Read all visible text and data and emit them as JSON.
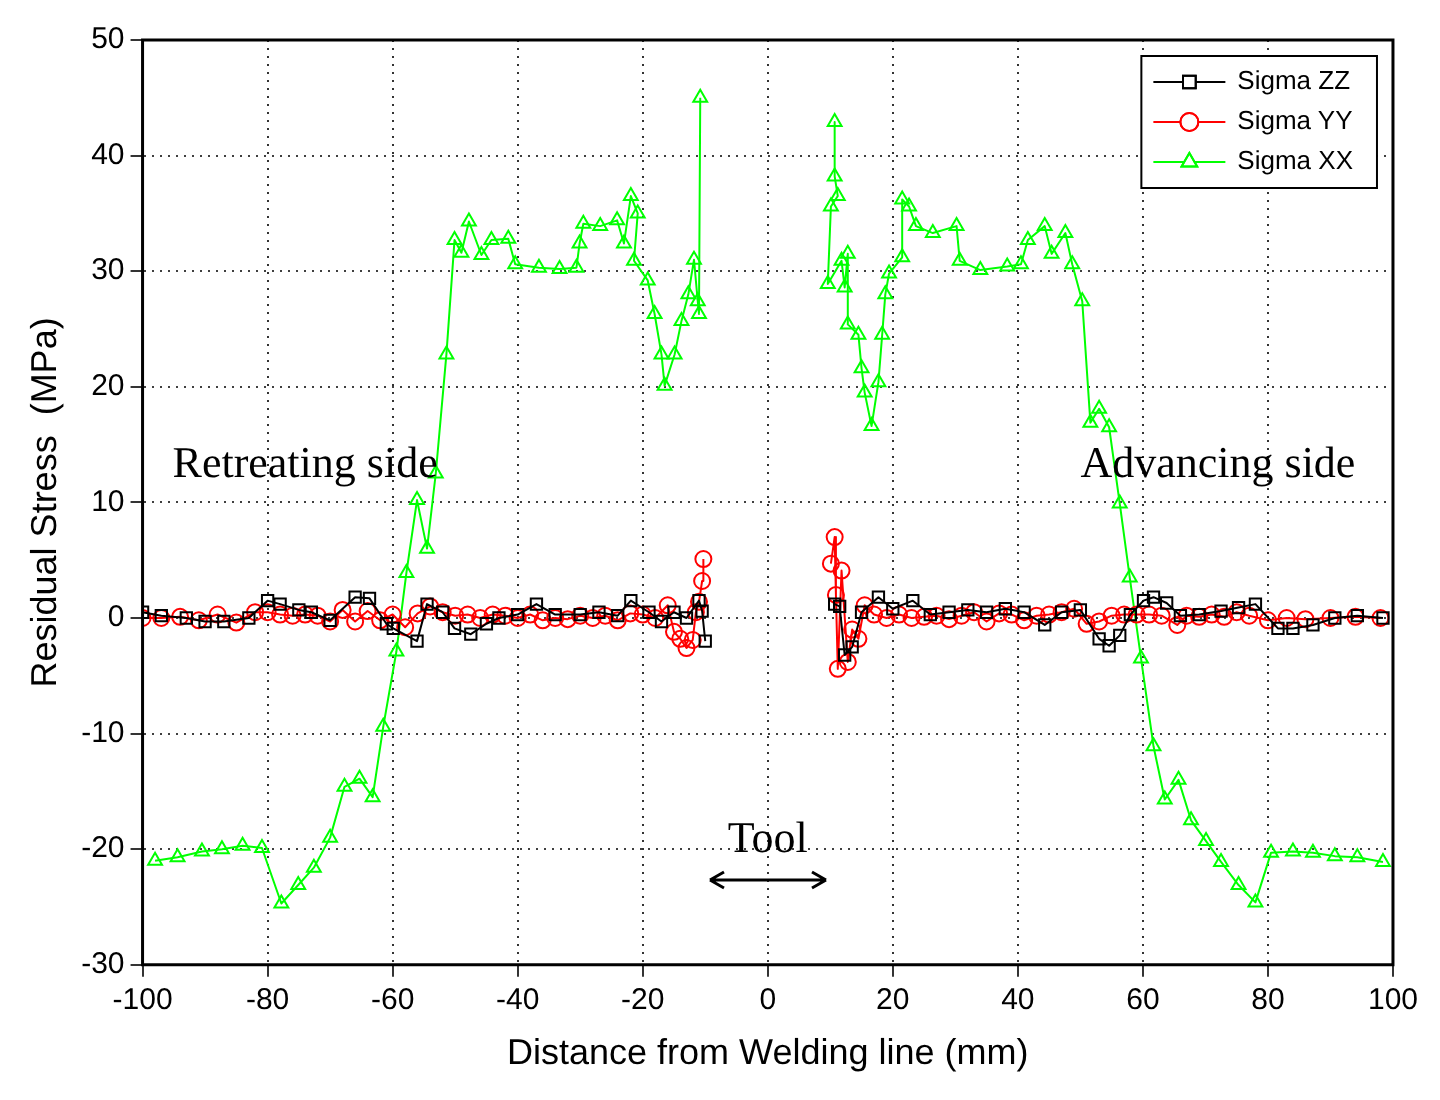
{
  "chart_data": {
    "type": "line",
    "xlabel": "Distance from Welding line (mm)",
    "ylabel": "Residual Stress  (MPa)",
    "xlim": [
      -100,
      100
    ],
    "xticks": [
      -100,
      -80,
      -60,
      -40,
      -20,
      0,
      20,
      40,
      60,
      80,
      100
    ],
    "ylim": [
      -30,
      50
    ],
    "yticks": [
      -30,
      -20,
      -10,
      0,
      10,
      20,
      30,
      40,
      50
    ],
    "grid": true,
    "legend": "top right",
    "line_style": "solid",
    "annotations": [
      "Retreating side",
      "Advancing side",
      "Tool"
    ],
    "series": [
      {
        "name": "Sigma ZZ",
        "color": "#000000",
        "marker": "square",
        "x": [
          -100,
          -97,
          -93,
          -90,
          -87,
          -83,
          -80,
          -78,
          -75,
          -73,
          -70,
          -66,
          -63.7,
          -61,
          -59.9,
          -56.1,
          -54.5,
          -52,
          -50.1,
          -47.5,
          -45,
          -43,
          -40,
          -37,
          -34,
          -30,
          -27,
          -24,
          -21.9,
          -19,
          -17,
          -15,
          -13,
          -11,
          -10.5,
          -10,
          0,
          10.7,
          11.5,
          12.3,
          13.5,
          15,
          17.7,
          20,
          23.2,
          26,
          29,
          32,
          35,
          38,
          41,
          44.3,
          47,
          50,
          53,
          54.6,
          56.3,
          58,
          60.1,
          61.7,
          63.8,
          66,
          69,
          72.5,
          75.3,
          78,
          81.6,
          84,
          87.2,
          90.7,
          94.3,
          98.4
        ],
        "values": [
          0.5,
          0.2,
          0,
          -0.3,
          -0.3,
          0,
          1.5,
          1.2,
          0.7,
          0.5,
          -0.2,
          1.8,
          1.7,
          -0.5,
          -0.9,
          -2.0,
          1.2,
          0.5,
          -0.9,
          -1.4,
          -0.5,
          0,
          0.3,
          1.2,
          0.3,
          0.3,
          0.5,
          0.2,
          1.5,
          0.5,
          -0.3,
          0.5,
          0,
          1.5,
          0.6,
          -2.0,
          null,
          1.2,
          1.0,
          -3.2,
          -2.5,
          0.5,
          1.8,
          0.8,
          1.5,
          0.3,
          0.5,
          0.7,
          0.5,
          0.8,
          0.5,
          -0.6,
          0.5,
          0.7,
          -1.8,
          -2.4,
          -1.5,
          0.3,
          1.5,
          1.8,
          1.3,
          0.2,
          0.3,
          0.6,
          0.9,
          1.2,
          -0.9,
          -0.9,
          -0.6,
          0,
          0.2,
          0
        ]
      },
      {
        "name": "Sigma YY",
        "color": "#ff0000",
        "marker": "circle",
        "x": [
          -100,
          -97,
          -94,
          -91,
          -88,
          -85,
          -82,
          -80,
          -78,
          -76,
          -74,
          -72,
          -70,
          -68,
          -66,
          -64,
          -62,
          -60,
          -58,
          -56,
          -54,
          -52,
          -50,
          -48,
          -46,
          -44,
          -42,
          -40,
          -38,
          -36,
          -34,
          -32,
          -30,
          -28,
          -26,
          -24,
          -22,
          -20,
          -18,
          -16,
          -15,
          -14,
          -13,
          -12,
          -11.5,
          -11,
          -10.5,
          -10.3,
          0,
          10.1,
          10.7,
          10.9,
          11.2,
          11.8,
          12.8,
          13.5,
          14.5,
          15.5,
          17,
          19,
          21,
          23,
          25,
          27,
          29,
          31,
          33,
          35,
          37,
          39,
          41,
          43,
          45,
          47,
          49,
          51,
          53,
          55,
          57,
          59,
          61,
          63,
          65.5,
          67,
          69,
          71,
          73,
          75,
          77,
          80,
          83,
          86,
          90,
          94,
          98
        ],
        "values": [
          0,
          0,
          0.1,
          -0.2,
          0.3,
          -0.4,
          0.5,
          0.5,
          0.3,
          0.2,
          0.3,
          0.2,
          -0.3,
          0.7,
          -0.3,
          0.6,
          -0.2,
          0.3,
          -0.8,
          0.4,
          1.0,
          0.5,
          0.2,
          0.3,
          0,
          0.3,
          0.2,
          0,
          0.3,
          -0.2,
          0,
          -0.1,
          0.2,
          0,
          0.2,
          -0.2,
          0.4,
          0.3,
          0,
          1.1,
          -1.2,
          -1.8,
          -2.6,
          -1.9,
          0.5,
          1.4,
          3.2,
          5.1,
          null,
          4.7,
          7.0,
          2,
          -4.4,
          4.1,
          -3.8,
          -1,
          -1.8,
          1.1,
          0.3,
          0,
          0.3,
          0,
          0.1,
          0.2,
          -0.1,
          0.2,
          0.5,
          -0.3,
          0.4,
          0.3,
          -0.2,
          0.2,
          0.3,
          0.5,
          0.8,
          -0.5,
          -0.3,
          0.2,
          0.3,
          0.3,
          0.3,
          0.2,
          -0.6,
          0.2,
          0.1,
          0.3,
          0.1,
          0.5,
          0.2,
          -0.2,
          0,
          -0.1,
          0,
          0.1,
          0
        ]
      },
      {
        "name": "Sigma XX",
        "color": "#00ff00",
        "marker": "triangle",
        "x": [
          -98,
          -94.4,
          -90.5,
          -87.3,
          -84,
          -80.9,
          -77.8,
          -75.1,
          -72.6,
          -70,
          -67.7,
          -65.3,
          -63.2,
          -61.5,
          -59.4,
          -57.8,
          -56.1,
          -54.5,
          -53.1,
          -51.4,
          -50.1,
          -49,
          -47.8,
          -45.8,
          -44.2,
          -41.5,
          -40.4,
          -36.6,
          -33.3,
          -30.6,
          -30.1,
          -29.5,
          -26.8,
          -24.1,
          -23,
          -21.9,
          -20.8,
          -21.4,
          -19.2,
          -18.1,
          -17,
          -16.5,
          -14.9,
          -13.8,
          -12.7,
          -11.8,
          -11.2,
          -11.0,
          -10.8,
          0,
          10.7,
          10.7,
          11.2,
          10.1,
          9.6,
          11.8,
          12.3,
          12.8,
          12.8,
          14.5,
          15,
          15.5,
          16.6,
          17.7,
          18.3,
          18.8,
          19.4,
          21.5,
          21.5,
          22.6,
          23.7,
          26.4,
          30.2,
          30.7,
          34,
          38.3,
          40.5,
          41.6,
          44.3,
          45.4,
          47.6,
          48.7,
          50.3,
          51.6,
          53,
          54.6,
          56.3,
          57.9,
          59.7,
          61.7,
          63.5,
          65.7,
          67.7,
          70.1,
          72.5,
          75.3,
          78,
          80.5,
          84,
          87.2,
          90.7,
          94.3,
          98.4
        ],
        "values": [
          -21.0,
          -20.7,
          -20.2,
          -20.0,
          -19.7,
          -19.9,
          -24.7,
          -23.1,
          -21.6,
          -19.0,
          -14.6,
          -13.9,
          -15.5,
          -9.4,
          -2.9,
          3.9,
          10.2,
          6.0,
          12.5,
          22.8,
          32.7,
          31.6,
          34.3,
          31.4,
          32.7,
          32.8,
          30.6,
          30.3,
          30.2,
          30.3,
          32.4,
          34.1,
          33.9,
          34.4,
          32.4,
          36.5,
          35.0,
          30.9,
          29.2,
          26.3,
          22.8,
          20.1,
          22.8,
          25.7,
          28.0,
          31,
          27.4,
          26.3,
          45,
          null,
          42.9,
          38.2,
          36.5,
          35.6,
          28.9,
          30.9,
          28.6,
          31.5,
          25.4,
          24.5,
          21.6,
          19.5,
          16.6,
          20.4,
          24.5,
          28.0,
          29.8,
          31.2,
          36.2,
          35.6,
          33.9,
          33.3,
          33.9,
          30.9,
          30.1,
          30.4,
          30.6,
          32.7,
          33.9,
          31.5,
          33.3,
          30.6,
          27.4,
          16.9,
          18.1,
          16.5,
          9.9,
          3.5,
          -3.5,
          -11.1,
          -15.7,
          -14.0,
          -17.5,
          -19.3,
          -21.1,
          -23.1,
          -24.6,
          -20.3,
          -20.2,
          -20.3,
          -20.6,
          -20.7,
          -21.1
        ]
      }
    ]
  }
}
